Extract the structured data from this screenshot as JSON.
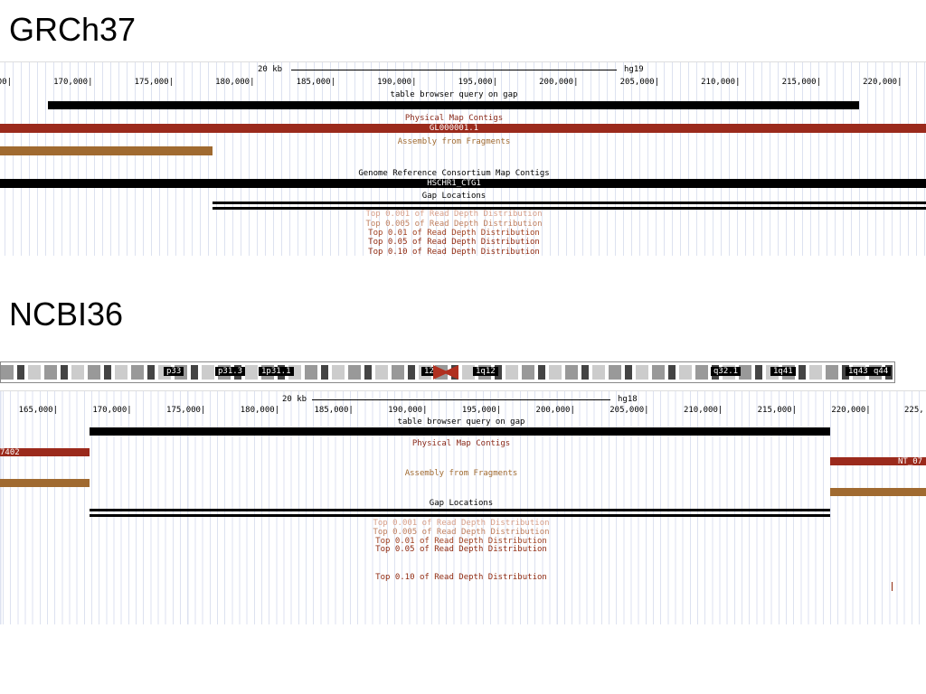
{
  "panels": [
    {
      "title": "GRCh37",
      "scale": "20 kb",
      "assembly": "hg19",
      "ticks": [
        "00|",
        "170,000|",
        "175,000|",
        "180,000|",
        "185,000|",
        "190,000|",
        "195,000|",
        "200,000|",
        "205,000|",
        "210,000|",
        "215,000|",
        "220,000|"
      ],
      "tracks": [
        {
          "label": "table browser query on gap"
        },
        {
          "label": "Physical Map Contigs",
          "item": "GL000001.1"
        },
        {
          "label": "Assembly from Fragments"
        },
        {
          "label": "Genome Reference Consortium Map Contigs",
          "item": "HSCHR1_CTG1"
        },
        {
          "label": "Gap Locations"
        },
        {
          "label": "Top 0.001 of Read Depth Distribution"
        },
        {
          "label": "Top 0.005 of Read Depth Distribution"
        },
        {
          "label": "Top 0.01 of Read Depth Distribution"
        },
        {
          "label": "Top 0.05 of Read Depth Distribution"
        },
        {
          "label": "Top 0.10 of Read Depth Distribution"
        }
      ]
    },
    {
      "title": "NCBI36",
      "scale": "20 kb",
      "assembly": "hg18",
      "ideogram": [
        "p33",
        "p31.3",
        "1p31.1",
        "12",
        "1q12",
        "q32.1",
        "1q41",
        "1q43",
        "q44"
      ],
      "ticks": [
        "165,000|",
        "170,000|",
        "175,000|",
        "180,000|",
        "185,000|",
        "190,000|",
        "195,000|",
        "200,000|",
        "205,000|",
        "210,000|",
        "215,000|",
        "220,000|",
        "225,"
      ],
      "tracks": [
        {
          "label": "table browser query on gap"
        },
        {
          "label": "Physical Map Contigs",
          "items": [
            "7402",
            "NT_07"
          ]
        },
        {
          "label": "Assembly from Fragments"
        },
        {
          "label": "Gap Locations"
        },
        {
          "label": "Top 0.001 of Read Depth Distribution"
        },
        {
          "label": "Top 0.005 of Read Depth Distribution"
        },
        {
          "label": "Top 0.01 of Read Depth Distribution"
        },
        {
          "label": "Top 0.05 of Read Depth Distribution"
        },
        {
          "label": "Top 0.10 of Read Depth Distribution"
        }
      ]
    }
  ]
}
